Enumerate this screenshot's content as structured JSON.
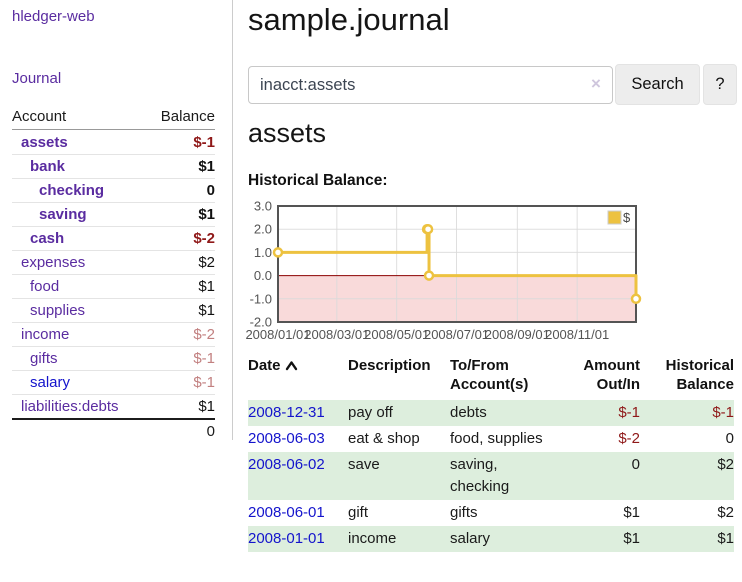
{
  "colors": {
    "accent_purple": "#5a2ca0",
    "link_blue": "#1414cc",
    "neg_strong": "#8f1818",
    "neg_soft": "#c28080",
    "row_green": "#ddeedd"
  },
  "sidebar": {
    "app_title": "hledger-web",
    "nav": {
      "journal_label": "Journal"
    },
    "accounts_table": {
      "headers": {
        "account": "Account",
        "balance": "Balance"
      },
      "rows": [
        {
          "name": "assets",
          "depth": 1,
          "bold": true,
          "balance": "$-1",
          "balance_style": "neg-strong"
        },
        {
          "name": "bank",
          "depth": 2,
          "bold": true,
          "balance": "$1",
          "balance_style": "pos"
        },
        {
          "name": "checking",
          "depth": 3,
          "bold": true,
          "balance": "0",
          "balance_style": "pos"
        },
        {
          "name": "saving",
          "depth": 3,
          "bold": true,
          "balance": "$1",
          "balance_style": "pos"
        },
        {
          "name": "cash",
          "depth": 2,
          "bold": true,
          "balance": "$-2",
          "balance_style": "neg-strong"
        },
        {
          "name": "expenses",
          "depth": 1,
          "bold": false,
          "balance": "$2",
          "balance_style": "pos"
        },
        {
          "name": "food",
          "depth": 2,
          "bold": false,
          "balance": "$1",
          "balance_style": "pos"
        },
        {
          "name": "supplies",
          "depth": 2,
          "bold": false,
          "balance": "$1",
          "balance_style": "pos"
        },
        {
          "name": "income",
          "depth": 1,
          "bold": false,
          "balance": "$-2",
          "balance_style": "neg-soft"
        },
        {
          "name": "gifts",
          "depth": 2,
          "bold": false,
          "balance": "$-1",
          "balance_style": "neg-soft"
        },
        {
          "name": "salary",
          "depth": 2,
          "bold": false,
          "balance": "$-1",
          "balance_style": "neg-soft",
          "unvisited": true
        },
        {
          "name": "liabilities:debts",
          "depth": 1,
          "bold": false,
          "balance": "$1",
          "balance_style": "pos"
        }
      ],
      "total": "0"
    }
  },
  "main": {
    "title": "sample.journal",
    "search": {
      "value": "inacct:assets",
      "clear_icon": "×",
      "button_label": "Search",
      "help_label": "?"
    },
    "account_heading": "assets",
    "chart_heading": "Historical Balance:",
    "transactions": {
      "headers": {
        "date": "Date",
        "description": "Description",
        "accounts": "To/From Account(s)",
        "amount": "Amount Out/In",
        "balance": "Historical Balance"
      },
      "sort": {
        "column": "date",
        "direction": "ascending"
      },
      "rows": [
        {
          "date": "2008-12-31",
          "description": "pay off",
          "accounts": "debts",
          "amount": "$-1",
          "balance": "$-1"
        },
        {
          "date": "2008-06-03",
          "description": "eat & shop",
          "accounts": "food, supplies",
          "amount": "$-2",
          "balance": "0"
        },
        {
          "date": "2008-06-02",
          "description": "save",
          "accounts": "saving, checking",
          "amount": "0",
          "balance": "$2"
        },
        {
          "date": "2008-06-01",
          "description": "gift",
          "accounts": "gifts",
          "amount": "$1",
          "balance": "$2"
        },
        {
          "date": "2008-01-01",
          "description": "income",
          "accounts": "salary",
          "amount": "$1",
          "balance": "$1"
        }
      ]
    }
  },
  "chart_data": {
    "type": "line",
    "title": "Historical Balance",
    "step": true,
    "series": [
      {
        "name": "$",
        "color": "#edc240",
        "points": [
          {
            "date": "2008/01/01",
            "day": 0,
            "value": 1
          },
          {
            "date": "2008/06/01",
            "day": 152,
            "value": 2
          },
          {
            "date": "2008/06/02",
            "day": 153,
            "value": 2
          },
          {
            "date": "2008/06/03",
            "day": 154,
            "value": 0
          },
          {
            "date": "2008/12/31",
            "day": 365,
            "value": -1
          }
        ]
      }
    ],
    "x_ticks": [
      {
        "day": 0,
        "label": "2008/01/01"
      },
      {
        "day": 60,
        "label": "2008/03/01"
      },
      {
        "day": 121,
        "label": "2008/05/01"
      },
      {
        "day": 182,
        "label": "2008/07/01"
      },
      {
        "day": 244,
        "label": "2008/09/01"
      },
      {
        "day": 305,
        "label": "2008/11/01"
      }
    ],
    "x_range_days": [
      0,
      365
    ],
    "y_ticks": [
      3.0,
      2.0,
      1.0,
      0.0,
      -1.0,
      -2.0
    ],
    "ylim": [
      -2.0,
      3.0
    ],
    "grid": true,
    "negative_region_fill": "#f9dada",
    "zero_line_color": "#8b0000",
    "legend": {
      "position": "top-right",
      "label": "$",
      "swatch_color": "#edc240"
    }
  }
}
